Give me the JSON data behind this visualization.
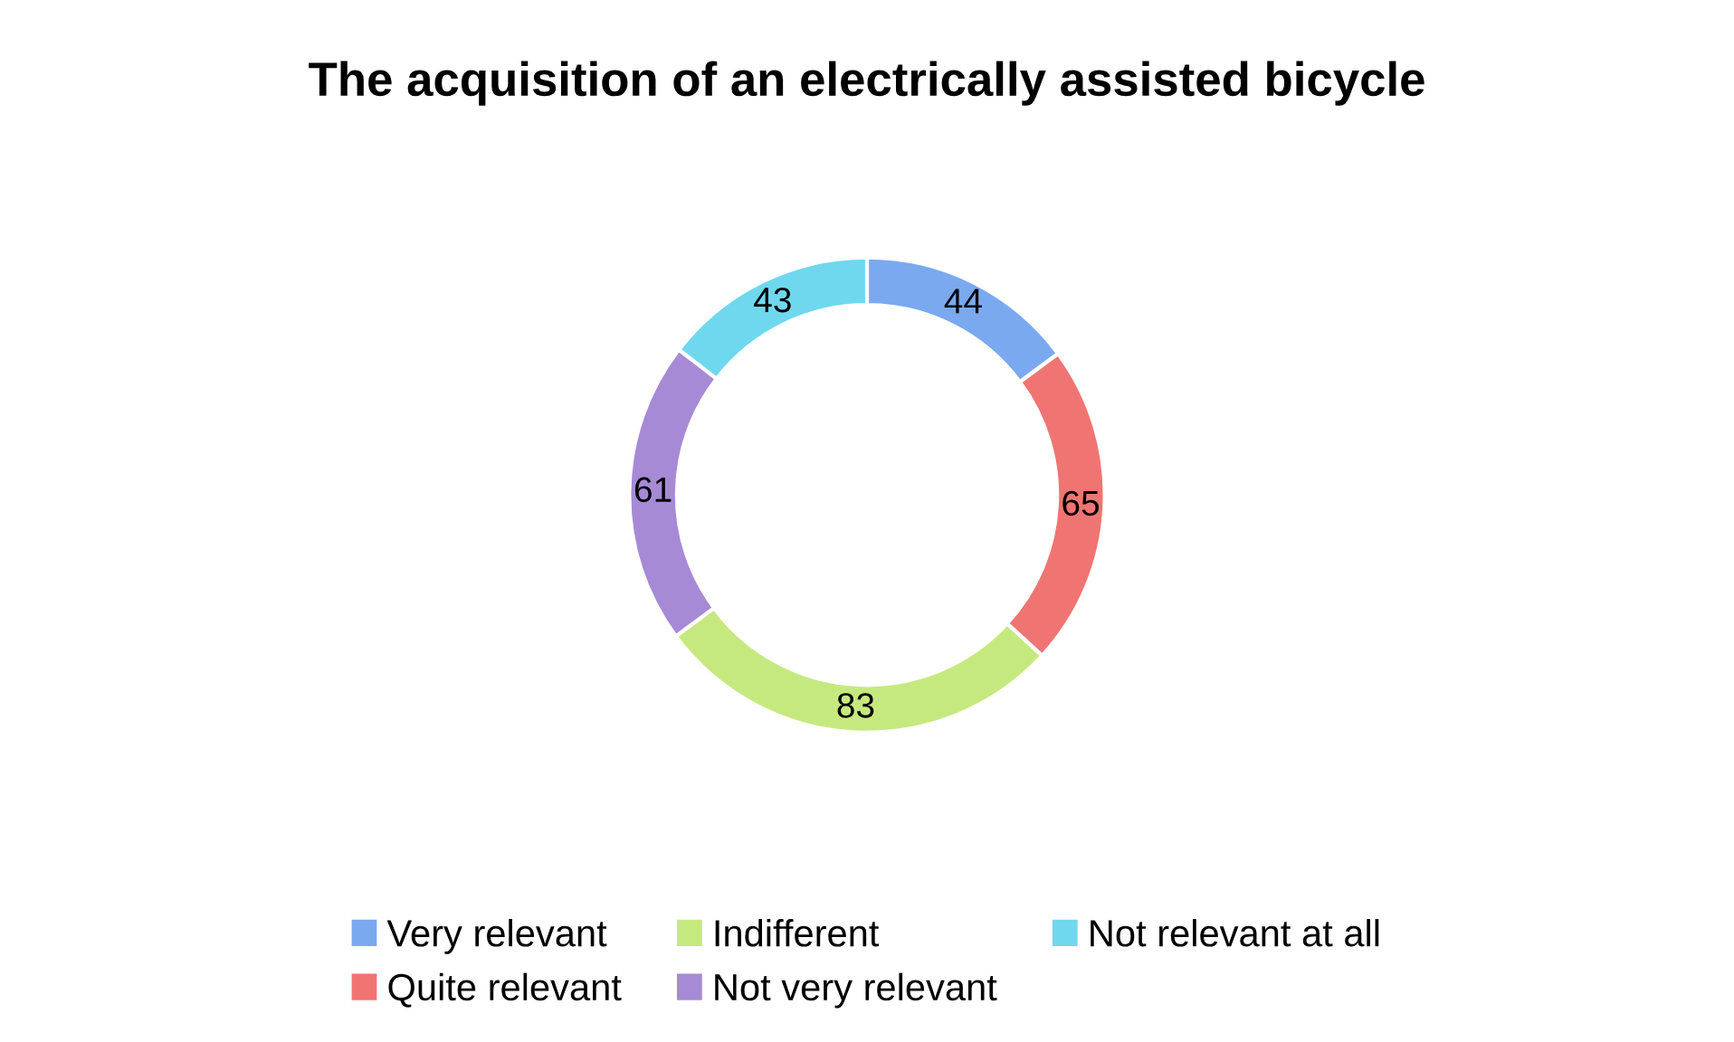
{
  "chart_data": {
    "type": "donut",
    "title": "The acquisition of an electrically assisted bicycle",
    "categories": [
      "Very relevant",
      "Quite relevant",
      "Indifferent",
      "Not very relevant",
      "Not relevant at all"
    ],
    "values": [
      44,
      65,
      83,
      61,
      43
    ],
    "colors": [
      "#7aa9f0",
      "#f07572",
      "#c6e97f",
      "#a68ad6",
      "#6fd8ee"
    ],
    "data_labels": true,
    "legend": "bottom"
  }
}
